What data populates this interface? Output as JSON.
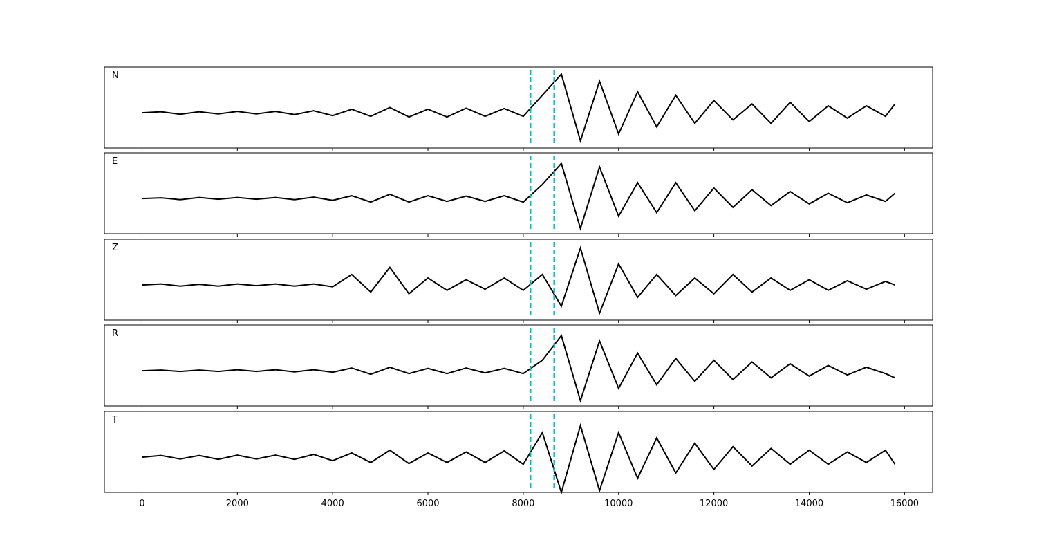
{
  "chart_data": {
    "type": "line",
    "x": [
      0,
      400,
      800,
      1200,
      1600,
      2000,
      2400,
      2800,
      3200,
      3600,
      4000,
      4400,
      4800,
      5200,
      5600,
      6000,
      6400,
      6800,
      7200,
      7600,
      8000,
      8400,
      8800,
      9200,
      9600,
      10000,
      10400,
      10800,
      11200,
      11600,
      12000,
      12400,
      12800,
      13200,
      13600,
      14000,
      14400,
      14800,
      15200,
      15600,
      15800
    ],
    "series": [
      {
        "name": "N",
        "values": [
          0,
          0.03,
          -0.04,
          0.03,
          -0.03,
          0.04,
          -0.03,
          0.04,
          -0.05,
          0.06,
          -0.08,
          0.1,
          -0.1,
          0.15,
          -0.12,
          0.1,
          -0.12,
          0.13,
          -0.1,
          0.12,
          -0.1,
          0.5,
          1.1,
          -0.8,
          0.9,
          -0.6,
          0.6,
          -0.4,
          0.5,
          -0.3,
          0.35,
          -0.2,
          0.25,
          -0.3,
          0.3,
          -0.25,
          0.2,
          -0.15,
          0.2,
          -0.1,
          0.25
        ]
      },
      {
        "name": "E",
        "values": [
          0,
          0.02,
          -0.03,
          0.03,
          -0.02,
          0.03,
          -0.02,
          0.03,
          -0.03,
          0.04,
          -0.05,
          0.08,
          -0.1,
          0.12,
          -0.1,
          0.08,
          -0.08,
          0.07,
          -0.08,
          0.08,
          -0.1,
          0.4,
          1.0,
          -0.85,
          0.9,
          -0.5,
          0.45,
          -0.4,
          0.45,
          -0.35,
          0.3,
          -0.25,
          0.25,
          -0.2,
          0.2,
          -0.15,
          0.15,
          -0.12,
          0.1,
          -0.08,
          0.15
        ]
      },
      {
        "name": "Z",
        "values": [
          0,
          0.03,
          -0.03,
          0.02,
          -0.03,
          0.03,
          -0.02,
          0.03,
          -0.03,
          0.03,
          -0.05,
          0.3,
          -0.2,
          0.5,
          -0.25,
          0.2,
          -0.15,
          0.15,
          -0.12,
          0.2,
          -0.15,
          0.3,
          -0.6,
          1.05,
          -0.8,
          0.6,
          -0.35,
          0.3,
          -0.3,
          0.2,
          -0.25,
          0.3,
          -0.2,
          0.2,
          -0.15,
          0.15,
          -0.15,
          0.12,
          -0.12,
          0.1,
          0.0
        ]
      },
      {
        "name": "R",
        "values": [
          0,
          0.02,
          -0.02,
          0.02,
          -0.02,
          0.03,
          -0.02,
          0.03,
          -0.03,
          0.03,
          -0.04,
          0.08,
          -0.1,
          0.1,
          -0.08,
          0.07,
          -0.08,
          0.08,
          -0.06,
          0.07,
          -0.08,
          0.3,
          1.0,
          -0.85,
          0.85,
          -0.5,
          0.5,
          -0.4,
          0.35,
          -0.3,
          0.3,
          -0.25,
          0.25,
          -0.2,
          0.2,
          -0.15,
          0.15,
          -0.12,
          0.1,
          -0.08,
          -0.2
        ]
      },
      {
        "name": "T",
        "values": [
          0,
          0.05,
          -0.05,
          0.05,
          -0.06,
          0.06,
          -0.05,
          0.06,
          -0.06,
          0.08,
          -0.1,
          0.12,
          -0.15,
          0.2,
          -0.18,
          0.12,
          -0.15,
          0.15,
          -0.15,
          0.18,
          -0.2,
          0.7,
          -1.0,
          0.9,
          -0.95,
          0.7,
          -0.6,
          0.55,
          -0.45,
          0.4,
          -0.35,
          0.3,
          -0.25,
          0.25,
          -0.2,
          0.2,
          -0.2,
          0.15,
          -0.15,
          0.2,
          -0.2
        ]
      }
    ],
    "color": "#000000",
    "vlines": [
      8150,
      8650
    ],
    "vline_color": "#00bfbf",
    "xlim": [
      -790,
      16590
    ],
    "xticks": [
      0,
      2000,
      4000,
      6000,
      8000,
      10000,
      12000,
      14000,
      16000
    ],
    "ylim": [
      -1,
      1.3
    ]
  }
}
